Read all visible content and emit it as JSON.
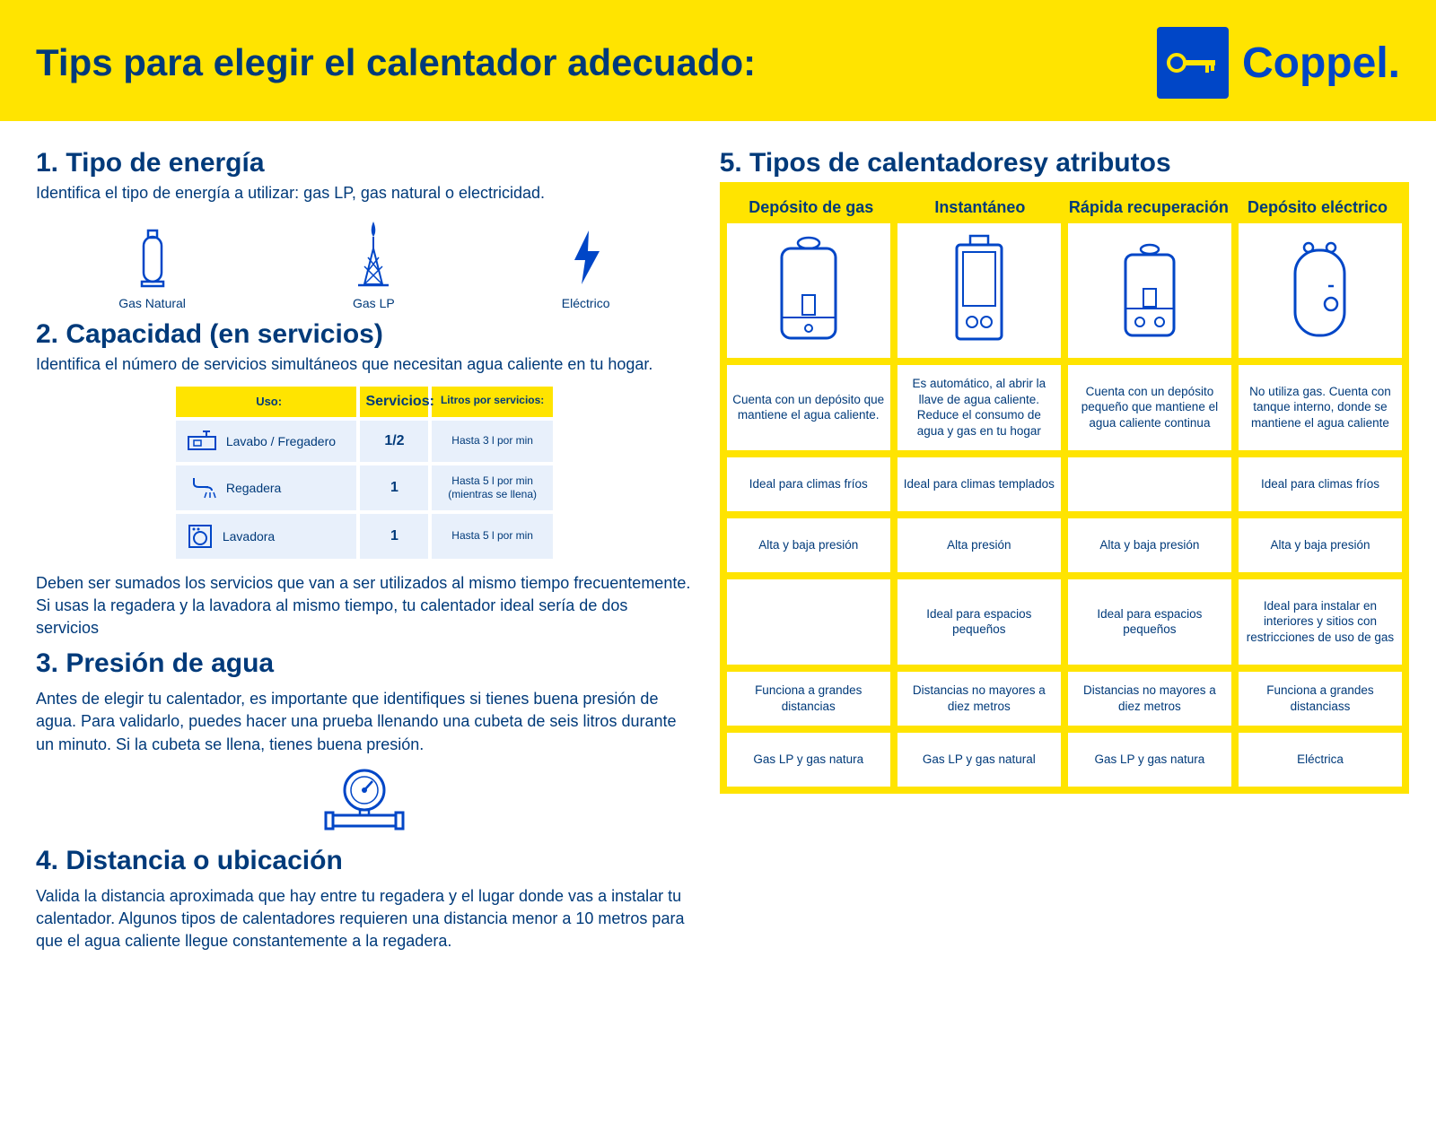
{
  "colors": {
    "brand_blue": "#0046c7",
    "dark_blue": "#003a7a",
    "yellow": "#ffe400",
    "light_blue_bg": "#e8f0fb"
  },
  "header": {
    "title": "Tips para elegir el calentador adecuado:",
    "brand": "Coppel."
  },
  "s1": {
    "title": "1. Tipo de energía",
    "sub": "Identifica el tipo de energía a utilizar: gas LP, gas natural o electricidad.",
    "items": [
      "Gas Natural",
      "Gas LP",
      "Eléctrico"
    ]
  },
  "s2": {
    "title": "2. Capacidad (en servicios)",
    "sub": "Identifica el número de servicios simultáneos que necesitan agua caliente en tu hogar.",
    "headers": [
      "Uso:",
      "Servicios:",
      "Litros por servicios:"
    ],
    "rows": [
      {
        "label": "Lavabo / Fregadero",
        "svc": "1/2",
        "lit": "Hasta 3 l por min"
      },
      {
        "label": "Regadera",
        "svc": "1",
        "lit": "Hasta 5 l por min (mientras se llena)"
      },
      {
        "label": "Lavadora",
        "svc": "1",
        "lit": "Hasta 5 l por min"
      }
    ],
    "note": "Deben ser sumados los servicios que van a ser utilizados al mismo tiempo frecuentemente. Si usas la regadera y la lavadora al mismo tiempo, tu calentador ideal sería de dos servicios"
  },
  "s3": {
    "title": "3. Presión de agua",
    "sub": "Antes de elegir tu calentador, es importante que identifiques si tienes buena presión de agua. Para validarlo, puedes hacer una prueba llenando una cubeta de seis litros durante un minuto. Si la cubeta se llena, tienes buena presión."
  },
  "s4": {
    "title": "4. Distancia o ubicación",
    "sub": "Valida la distancia aproximada que hay entre tu regadera y el lugar donde vas a instalar tu calentador. Algunos tipos de calentadores requieren una distancia menor a 10 metros para que el agua caliente llegue constantemente a la regadera."
  },
  "s5": {
    "title": "5. Tipos de calentadoresy atributos",
    "cols": [
      "Depósito de gas",
      "Instantáneo",
      "Rápida recuperación",
      "Depósito eléctrico"
    ],
    "rows": [
      [
        "Cuenta con un depósito que mantiene el agua caliente.",
        "Es automático, al abrir la llave de agua caliente. Reduce el consumo de agua y gas en tu hogar",
        "Cuenta con un depósito pequeño que mantiene el agua caliente continua",
        "No utiliza gas. Cuenta con tanque interno, donde se mantiene el agua caliente"
      ],
      [
        "Ideal para climas fríos",
        "Ideal para climas templados",
        "",
        "Ideal para climas fríos"
      ],
      [
        "Alta y baja presión",
        "Alta presión",
        "Alta y baja presión",
        "Alta y baja presión"
      ],
      [
        "",
        "Ideal para espacios pequeños",
        "Ideal para espacios pequeños",
        "Ideal para instalar en interiores y sitios con restricciones de uso de gas"
      ],
      [
        "Funciona a grandes distancias",
        "Distancias no mayores a diez metros",
        "Distancias no mayores a diez metros",
        "Funciona a grandes distanciass"
      ],
      [
        "Gas LP y gas natura",
        "Gas LP y gas natural",
        "Gas LP y gas natura",
        "Eléctrica"
      ]
    ]
  }
}
